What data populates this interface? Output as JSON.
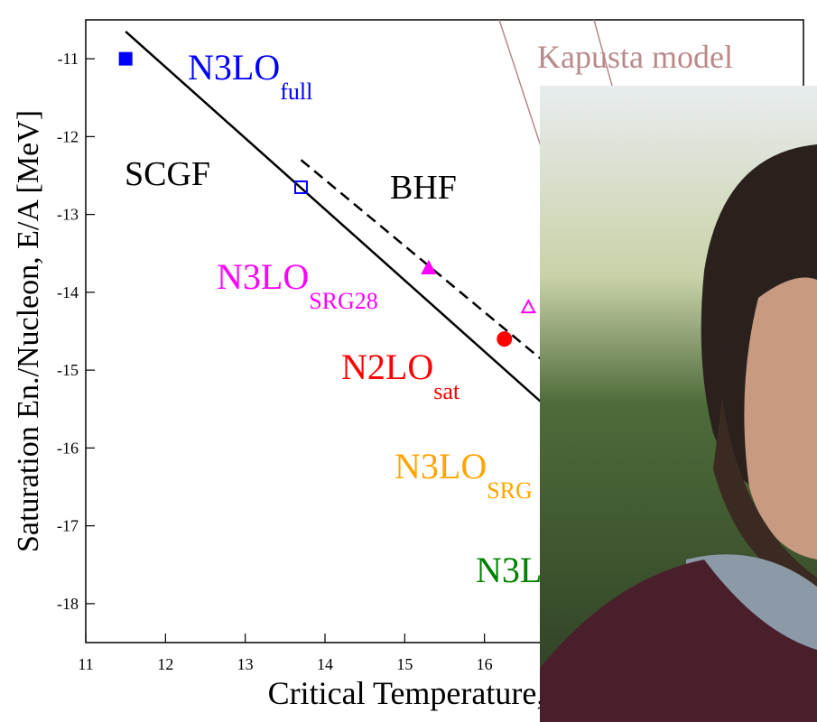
{
  "chart_data": {
    "type": "scatter",
    "x_label": "Critical Temperature,",
    "y_label": "Saturation En./Nucleon, E/A [MeV]",
    "xlim": [
      11,
      20
    ],
    "xticks": [
      11,
      12,
      13,
      14,
      15,
      16
    ],
    "ylim": [
      -18.5,
      -10.5
    ],
    "yticks": [
      -11,
      -12,
      -13,
      -14,
      -15,
      -16,
      -17,
      -18
    ],
    "points": [
      {
        "x": 11.5,
        "y": -11.0,
        "color": "#0000ff",
        "marker": "square",
        "filled": true
      },
      {
        "x": 13.7,
        "y": -12.65,
        "color": "#0000ff",
        "marker": "square",
        "filled": false
      },
      {
        "x": 15.3,
        "y": -13.7,
        "color": "#ff00ff",
        "marker": "triangle",
        "filled": true
      },
      {
        "x": 16.55,
        "y": -14.2,
        "color": "#ff00ff",
        "marker": "triangle",
        "filled": false
      },
      {
        "x": 16.25,
        "y": -14.6,
        "color": "#ff0000",
        "marker": "circle",
        "filled": true
      }
    ],
    "lines": [
      {
        "x": [
          11.5,
          16.7
        ],
        "y": [
          -10.65,
          -15.4
        ],
        "dashed": false
      },
      {
        "x": [
          13.7,
          16.7
        ],
        "y": [
          -12.3,
          -14.85
        ],
        "dashed": true
      }
    ],
    "annotations": [
      {
        "text": "N3LO",
        "sub": "full",
        "color": "#0000ff"
      },
      {
        "text": "SCGF",
        "color": "#000000"
      },
      {
        "text": "BHF",
        "color": "#000000"
      },
      {
        "text": "N3LO",
        "sub": "SRG28",
        "color": "#ff00ff"
      },
      {
        "text": "N2LO",
        "sub": "sat",
        "color": "#ff0000"
      },
      {
        "text": "N3LO",
        "sub": "SRG",
        "color": "#ffa500"
      },
      {
        "text": "N3L",
        "color": "#008000"
      },
      {
        "text": "Kapusta model",
        "color": "#b88a8a"
      }
    ]
  }
}
